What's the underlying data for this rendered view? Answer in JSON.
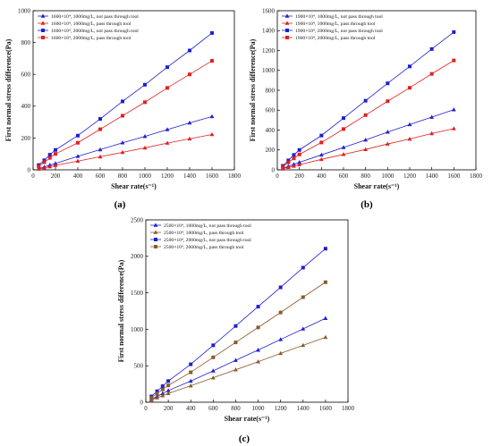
{
  "chart_data": [
    {
      "type": "line",
      "panel_label": "(a)",
      "xlabel": "Shear rate(s⁻¹)",
      "ylabel": "First normal stress difference(Pa)",
      "xlim": [
        0,
        1800
      ],
      "ylim": [
        0,
        1000
      ],
      "xticks": [
        0,
        200,
        400,
        600,
        800,
        1000,
        1200,
        1400,
        1600,
        1800
      ],
      "yticks": [
        0,
        200,
        400,
        600,
        800,
        1000
      ],
      "legend_position": "top-left",
      "grid": false,
      "x": [
        50,
        100,
        150,
        200,
        400,
        600,
        800,
        1000,
        1200,
        1400,
        1600
      ],
      "series": [
        {
          "name": "1600×10⁴, 1000mg/L, not pass through tool",
          "marker": "triangle",
          "color": "#1f1fd0",
          "values": [
            8,
            18,
            30,
            40,
            85,
            127,
            170,
            210,
            253,
            295,
            335
          ]
        },
        {
          "name": "1600×10⁴, 1000mg/L, pass through tool",
          "marker": "triangle",
          "color": "#e02020",
          "values": [
            5,
            12,
            20,
            28,
            55,
            82,
            110,
            138,
            168,
            195,
            222
          ]
        },
        {
          "name": "1600×10⁴, 2000mg/L, not pass through tool",
          "marker": "square",
          "color": "#1f1fd0",
          "values": [
            30,
            60,
            95,
            125,
            215,
            320,
            430,
            535,
            645,
            750,
            860
          ]
        },
        {
          "name": "1600×10⁴, 2000mg/L, pass through tool",
          "marker": "square",
          "color": "#e02020",
          "values": [
            22,
            48,
            75,
            100,
            170,
            255,
            340,
            425,
            515,
            600,
            685
          ]
        }
      ]
    },
    {
      "type": "line",
      "panel_label": "(b)",
      "xlabel": "Shear rate(s⁻¹)",
      "ylabel": "First normal stress difference(Pa)",
      "xlim": [
        0,
        1800
      ],
      "ylim": [
        0,
        1600
      ],
      "xticks": [
        0,
        200,
        400,
        600,
        800,
        1000,
        1200,
        1400,
        1600,
        1800
      ],
      "yticks": [
        0,
        200,
        400,
        600,
        800,
        1000,
        1200,
        1400,
        1600
      ],
      "legend_position": "top-left",
      "grid": false,
      "x": [
        50,
        100,
        150,
        200,
        400,
        600,
        800,
        1000,
        1200,
        1400,
        1600
      ],
      "series": [
        {
          "name": "1900×10⁴, 1000mg/L, not pass through tool",
          "marker": "triangle",
          "color": "#1f1fd0",
          "values": [
            15,
            35,
            55,
            75,
            150,
            225,
            300,
            380,
            455,
            530,
            605
          ]
        },
        {
          "name": "1900×10⁴, 1000mg/L, pass through tool",
          "marker": "triangle",
          "color": "#e02020",
          "values": [
            10,
            25,
            38,
            52,
            105,
            155,
            205,
            260,
            310,
            365,
            415
          ]
        },
        {
          "name": "1900×10⁴, 2000mg/L, not pass through tool",
          "marker": "square",
          "color": "#1f1fd0",
          "values": [
            40,
            95,
            150,
            200,
            345,
            520,
            695,
            870,
            1040,
            1215,
            1385
          ]
        },
        {
          "name": "1900×10⁴, 2000mg/L, pass through tool",
          "marker": "square",
          "color": "#e02020",
          "values": [
            30,
            75,
            115,
            155,
            275,
            410,
            550,
            690,
            825,
            965,
            1100
          ]
        }
      ]
    },
    {
      "type": "line",
      "panel_label": "(c)",
      "xlabel": "Shear rate(s⁻¹)",
      "ylabel": "First normal stress difference(Pa)",
      "xlim": [
        0,
        1800
      ],
      "ylim": [
        0,
        2500
      ],
      "xticks": [
        0,
        200,
        400,
        600,
        800,
        1000,
        1200,
        1400,
        1600,
        1800
      ],
      "yticks": [
        0,
        500,
        1000,
        1500,
        2000,
        2500
      ],
      "legend_position": "top-left",
      "grid": false,
      "x": [
        50,
        100,
        150,
        200,
        400,
        600,
        800,
        1000,
        1200,
        1400,
        1600
      ],
      "series": [
        {
          "name": "2500×10⁴, 1000mg/L, not pass through tool",
          "marker": "triangle",
          "color": "#1f1fd0",
          "values": [
            40,
            80,
            120,
            160,
            290,
            430,
            575,
            715,
            860,
            1005,
            1150
          ]
        },
        {
          "name": "2500×10⁴, 1000mg/L, pass through tool",
          "marker": "triangle",
          "color": "#8b5a2b",
          "values": [
            30,
            60,
            90,
            120,
            225,
            335,
            445,
            555,
            670,
            780,
            890
          ]
        },
        {
          "name": "2500×10⁴, 2000mg/L, not pass through tool",
          "marker": "square",
          "color": "#1f1fd0",
          "values": [
            80,
            150,
            220,
            290,
            520,
            780,
            1045,
            1310,
            1575,
            1845,
            2105
          ]
        },
        {
          "name": "2500×10⁴, 2000mg/L, pass through tool",
          "marker": "square",
          "color": "#8b5a2b",
          "values": [
            60,
            120,
            175,
            230,
            410,
            615,
            820,
            1025,
            1230,
            1440,
            1645
          ]
        }
      ]
    }
  ]
}
